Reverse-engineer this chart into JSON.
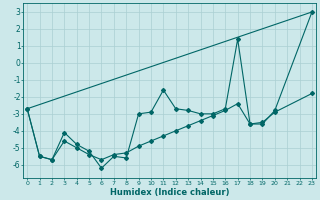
{
  "x": [
    0,
    1,
    2,
    3,
    4,
    5,
    6,
    7,
    8,
    9,
    10,
    11,
    12,
    13,
    14,
    15,
    16,
    17,
    18,
    19,
    20,
    21,
    22,
    23
  ],
  "line1_y": [
    -2.7,
    -5.5,
    -5.7,
    -4.1,
    -4.8,
    -5.2,
    -6.2,
    -5.5,
    -5.6,
    -3.0,
    -2.9,
    -1.6,
    -2.7,
    -2.8,
    -3.0,
    -3.0,
    -2.7,
    1.4,
    -3.6,
    -3.6,
    -2.8,
    null,
    null,
    3.0
  ],
  "line2_y": [
    -2.7,
    -5.5,
    -5.7,
    -4.6,
    -5.0,
    -5.4,
    -5.7,
    -5.4,
    -5.3,
    -4.9,
    -4.6,
    -4.3,
    -4.0,
    -3.7,
    -3.4,
    -3.1,
    -2.8,
    -2.4,
    -3.6,
    -3.5,
    -2.9,
    null,
    null,
    -1.8
  ],
  "line3_y": [
    -2.7,
    null,
    null,
    null,
    null,
    null,
    null,
    null,
    null,
    null,
    null,
    null,
    null,
    null,
    null,
    null,
    null,
    null,
    null,
    null,
    null,
    null,
    null,
    3.0
  ],
  "background_color": "#cce8ea",
  "grid_color": "#aacfd2",
  "line_color": "#006666",
  "ylim": [
    -6.8,
    3.5
  ],
  "xlim": [
    -0.3,
    23.3
  ],
  "yticks": [
    -6,
    -5,
    -4,
    -3,
    -2,
    -1,
    0,
    1,
    2,
    3
  ],
  "xticks": [
    0,
    1,
    2,
    3,
    4,
    5,
    6,
    7,
    8,
    9,
    10,
    11,
    12,
    13,
    14,
    15,
    16,
    17,
    18,
    19,
    20,
    21,
    22,
    23
  ],
  "xlabel": "Humidex (Indice chaleur)",
  "marker": "D",
  "markersize": 2.0,
  "linewidth": 0.8
}
